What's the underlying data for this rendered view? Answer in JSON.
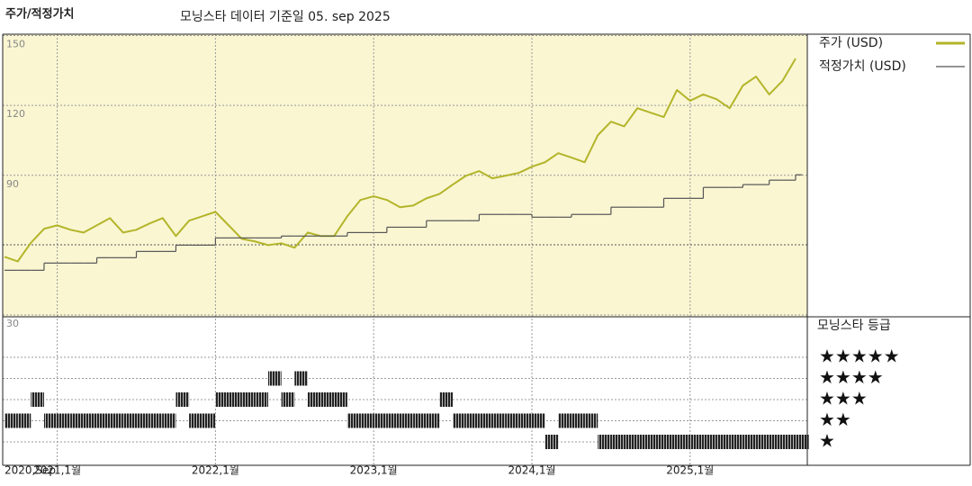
{
  "chart_data": [
    {
      "type": "line",
      "title": "주가/적정가치",
      "subtitle": "모닝스타 데이터 기준일 05. sep 2025",
      "x": [
        "2020-09",
        "2020-10",
        "2020-11",
        "2020-12",
        "2021-01",
        "2021-02",
        "2021-03",
        "2021-04",
        "2021-05",
        "2021-06",
        "2021-07",
        "2021-08",
        "2021-09",
        "2021-10",
        "2021-11",
        "2021-12",
        "2022-01",
        "2022-02",
        "2022-03",
        "2022-04",
        "2022-05",
        "2022-06",
        "2022-07",
        "2022-08",
        "2022-09",
        "2022-10",
        "2022-11",
        "2022-12",
        "2023-01",
        "2023-02",
        "2023-03",
        "2023-04",
        "2023-05",
        "2023-06",
        "2023-07",
        "2023-08",
        "2023-09",
        "2023-10",
        "2023-11",
        "2023-12",
        "2024-01",
        "2024-02",
        "2024-03",
        "2024-04",
        "2024-05",
        "2024-06",
        "2024-07",
        "2024-08",
        "2024-09",
        "2024-10",
        "2024-11",
        "2024-12",
        "2025-01",
        "2025-02",
        "2025-03",
        "2025-04",
        "2025-05",
        "2025-06",
        "2025-07",
        "2025-08",
        "2025-09"
      ],
      "xlim": [
        "2020-09",
        "2025-09"
      ],
      "xticks": [
        {
          "value": "2020-09",
          "label": "2020,Sep"
        },
        {
          "value": "2021-01",
          "label": "2021,1월"
        },
        {
          "value": "2022-01",
          "label": "2022,1월"
        },
        {
          "value": "2023-01",
          "label": "2023,1월"
        },
        {
          "value": "2024-01",
          "label": "2024,1월"
        },
        {
          "value": "2025-01",
          "label": "2025,1월"
        }
      ],
      "ylim": [
        30,
        150
      ],
      "yticks": [
        30,
        90,
        120,
        150
      ],
      "grid": true,
      "series": [
        {
          "name": "주가 (USD)",
          "color": "#b3b52a",
          "style": "line",
          "values": [
            55,
            53,
            61,
            67,
            68.5,
            66.6,
            65.4,
            68.5,
            71.6,
            65.4,
            66.6,
            69.3,
            71.6,
            63.9,
            70.5,
            72.4,
            74.3,
            68.5,
            62.7,
            61.6,
            60,
            60.8,
            58.9,
            65.4,
            63.9,
            63.9,
            72.4,
            79.4,
            81,
            79.4,
            76.3,
            77,
            80.1,
            82,
            86,
            89.8,
            91.8,
            88.7,
            89.8,
            91,
            93.7,
            95.6,
            99.5,
            97.6,
            95.6,
            107.2,
            113,
            111,
            118.8,
            116.9,
            115,
            126.6,
            122,
            124.7,
            122.7,
            118.8,
            128.5,
            132.4,
            124.7,
            130.5,
            140.1
          ]
        },
        {
          "name": "적정가치 (USD)",
          "color": "#555555",
          "style": "step",
          "values": [
            49.2,
            49.2,
            49.2,
            52.3,
            52.3,
            52.3,
            52.3,
            54.6,
            54.6,
            54.6,
            57.3,
            57.3,
            57.3,
            60,
            60,
            60,
            63.1,
            63.1,
            63.1,
            63.1,
            63.1,
            63.9,
            63.9,
            63.9,
            63.9,
            63.9,
            65.4,
            65.4,
            65.4,
            67.7,
            67.7,
            67.7,
            70.5,
            70.5,
            70.5,
            70.5,
            73.2,
            73.2,
            73.2,
            73.2,
            72,
            72,
            72,
            73.2,
            73.2,
            73.2,
            76.3,
            76.3,
            76.3,
            76.3,
            80.1,
            80.1,
            80.1,
            84.8,
            84.8,
            84.8,
            86,
            86,
            87.9,
            87.9,
            90.2
          ]
        }
      ]
    },
    {
      "type": "rating",
      "title": "모닝스타 등급",
      "x": [
        "2020-09",
        "2020-10",
        "2020-11",
        "2020-12",
        "2021-01",
        "2021-02",
        "2021-03",
        "2021-04",
        "2021-05",
        "2021-06",
        "2021-07",
        "2021-08",
        "2021-09",
        "2021-10",
        "2021-11",
        "2021-12",
        "2022-01",
        "2022-02",
        "2022-03",
        "2022-04",
        "2022-05",
        "2022-06",
        "2022-07",
        "2022-08",
        "2022-09",
        "2022-10",
        "2022-11",
        "2022-12",
        "2023-01",
        "2023-02",
        "2023-03",
        "2023-04",
        "2023-05",
        "2023-06",
        "2023-07",
        "2023-08",
        "2023-09",
        "2023-10",
        "2023-11",
        "2023-12",
        "2024-01",
        "2024-02",
        "2024-03",
        "2024-04",
        "2024-05",
        "2024-06",
        "2024-07",
        "2024-08",
        "2024-09",
        "2024-10",
        "2024-11",
        "2024-12",
        "2025-01",
        "2025-02",
        "2025-03",
        "2025-04",
        "2025-05",
        "2025-06",
        "2025-07",
        "2025-08",
        "2025-09"
      ],
      "levels": [
        5,
        4,
        3,
        2,
        1
      ],
      "level_labels": [
        "★★★★★",
        "★★★★",
        "★★★",
        "★★",
        "★"
      ],
      "values": [
        2,
        2,
        3,
        2,
        2,
        2,
        2,
        2,
        2,
        2,
        2,
        2,
        2,
        3,
        2,
        2,
        3,
        3,
        3,
        3,
        4,
        3,
        4,
        3,
        3,
        3,
        2,
        2,
        2,
        2,
        2,
        2,
        2,
        3,
        2,
        2,
        2,
        2,
        2,
        2,
        2,
        1,
        2,
        2,
        2,
        1,
        1,
        1,
        1,
        1,
        1,
        1,
        1,
        1,
        1,
        1,
        1,
        1,
        1,
        1,
        1
      ]
    }
  ]
}
